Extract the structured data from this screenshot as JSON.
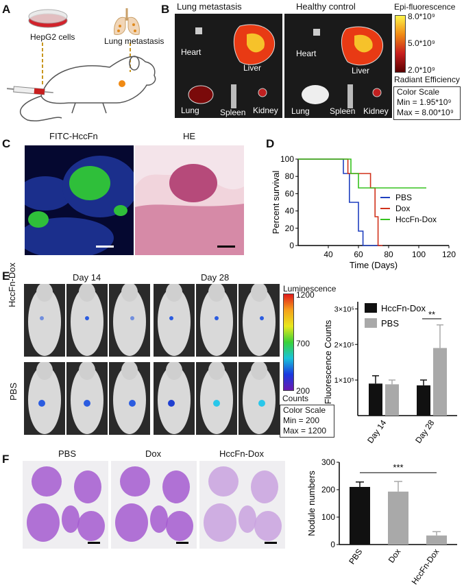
{
  "panel_a": {
    "letter": "A",
    "cells_label": "HepG2 cells",
    "lung_label": "Lung metastasis"
  },
  "panel_b": {
    "letter": "B",
    "title_left": "Lung metastasis",
    "title_right": "Healthy control",
    "organs": [
      "Heart",
      "Liver",
      "Lung",
      "Spleen",
      "Kidney"
    ],
    "scale_title": "Epi-fluorescence",
    "scale_ticks": [
      "8.0*10⁹",
      "5.0*10⁹",
      "2.0*10⁹"
    ],
    "scale_unit": "Radiant Efficiency",
    "color_scale_title": "Color Scale",
    "color_scale_min": "Min = 1.95*10⁹",
    "color_scale_max": "Max = 8.00*10⁹"
  },
  "panel_c": {
    "letter": "C",
    "left_title": "FITC-HccFn",
    "right_title": "HE"
  },
  "panel_e": {
    "letter": "E",
    "day14": "Day 14",
    "day28": "Day 28",
    "row1": "HccFn-Dox",
    "row2": "PBS",
    "lum_title": "Luminescence",
    "lum_ticks": [
      "1200",
      "700",
      "200"
    ],
    "lum_unit": "Counts",
    "color_scale_title": "Color Scale",
    "color_scale_min": "Min = 200",
    "color_scale_max": "Max = 1200"
  },
  "panel_f": {
    "letter": "F",
    "titles": [
      "PBS",
      "Dox",
      "HccFn-Dox"
    ]
  },
  "chart_data": [
    {
      "panel": "D",
      "type": "line",
      "step": true,
      "xlabel": "Time (Days)",
      "ylabel": "Percent survival",
      "xlim": [
        20,
        120
      ],
      "ylim": [
        0,
        100
      ],
      "xticks": [
        "40",
        "60",
        "80",
        "100",
        "120"
      ],
      "yticks": [
        "0",
        "20",
        "40",
        "60",
        "80",
        "100"
      ],
      "series": [
        {
          "name": "PBS",
          "color": "#1f3fbf",
          "x": [
            20,
            50,
            50,
            54,
            54,
            60,
            60,
            63,
            63,
            75,
            75
          ],
          "y": [
            100,
            100,
            83.3,
            83.3,
            50,
            50,
            16.7,
            16.7,
            0,
            0,
            0
          ]
        },
        {
          "name": "Dox",
          "color": "#d0311a",
          "x": [
            20,
            53,
            53,
            68,
            68,
            71,
            71,
            73,
            73,
            76
          ],
          "y": [
            100,
            100,
            83.3,
            83.3,
            66.7,
            66.7,
            33.3,
            33.3,
            0,
            0
          ]
        },
        {
          "name": "HccFn-Dox",
          "color": "#35c21e",
          "x": [
            20,
            55,
            55,
            60,
            60,
            75,
            75,
            105
          ],
          "y": [
            100,
            100,
            83.3,
            83.3,
            66.7,
            66.7,
            66.7,
            66.7
          ]
        }
      ]
    },
    {
      "panel": "E",
      "type": "bar",
      "ylabel": "Fluorescence Counts",
      "categories": [
        "Day 14",
        "Day 28"
      ],
      "yticks": [
        "1×10⁵",
        "2×10⁵",
        "3×10⁵"
      ],
      "ylim": [
        0,
        320000
      ],
      "series": [
        {
          "name": "HccFn-Dox",
          "color": "#111111",
          "values": [
            90000,
            85000
          ],
          "errors": [
            22000,
            15000
          ]
        },
        {
          "name": "PBS",
          "color": "#a9a9a9",
          "values": [
            88000,
            190000
          ],
          "errors": [
            12000,
            65000
          ]
        }
      ],
      "annotation": "**"
    },
    {
      "panel": "F",
      "type": "bar",
      "ylabel": "Nodule numbers",
      "categories": [
        "PBS",
        "Dox",
        "HccFn-Dox"
      ],
      "ylim": [
        0,
        300
      ],
      "yticks": [
        "0",
        "100",
        "200",
        "300"
      ],
      "values": [
        210,
        193,
        33
      ],
      "errors": [
        18,
        37,
        14
      ],
      "colors": [
        "#111111",
        "#a9a9a9",
        "#a9a9a9"
      ],
      "annotation": "***"
    }
  ]
}
